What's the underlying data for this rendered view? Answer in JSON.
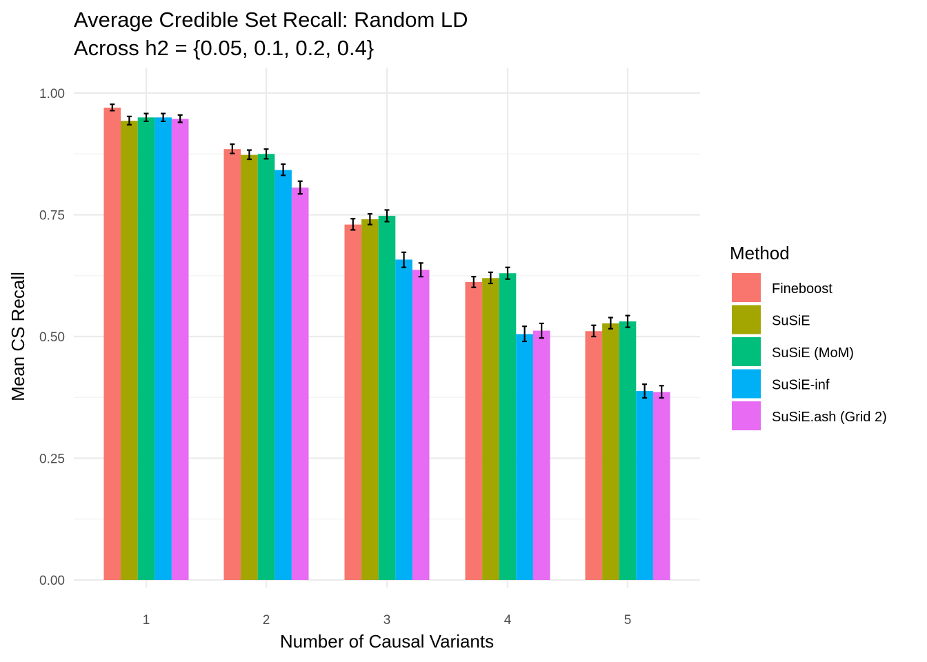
{
  "chart_data": {
    "type": "bar",
    "title": "Average Credible Set Recall: Random LD",
    "subtitle": "Across h2 = {0.05, 0.1, 0.2, 0.4}",
    "xlabel": "Number of Causal Variants",
    "ylabel": "Mean CS Recall",
    "categories": [
      "1",
      "2",
      "3",
      "4",
      "5"
    ],
    "ylim": [
      0,
      1.0
    ],
    "yticks": [
      0.0,
      0.25,
      0.5,
      0.75,
      1.0
    ],
    "ytick_labels": [
      "0.00",
      "0.25",
      "0.50",
      "0.75",
      "1.00"
    ],
    "grid": true,
    "legend": {
      "title": "Method",
      "position": "right"
    },
    "series": [
      {
        "name": "Fineboost",
        "color": "#F8766D",
        "values": [
          0.97,
          0.885,
          0.73,
          0.612,
          0.511
        ],
        "err_low": [
          0.964,
          0.876,
          0.719,
          0.601,
          0.5
        ],
        "err_high": [
          0.977,
          0.895,
          0.742,
          0.623,
          0.523
        ]
      },
      {
        "name": "SuSiE",
        "color": "#A3A500",
        "values": [
          0.943,
          0.873,
          0.741,
          0.62,
          0.527
        ],
        "err_low": [
          0.935,
          0.864,
          0.73,
          0.609,
          0.516
        ],
        "err_high": [
          0.952,
          0.883,
          0.752,
          0.632,
          0.539
        ]
      },
      {
        "name": "SuSiE (MoM)",
        "color": "#00BF7D",
        "values": [
          0.95,
          0.875,
          0.748,
          0.63,
          0.531
        ],
        "err_low": [
          0.942,
          0.865,
          0.736,
          0.618,
          0.519
        ],
        "err_high": [
          0.958,
          0.885,
          0.76,
          0.642,
          0.543
        ]
      },
      {
        "name": "SuSiE-inf",
        "color": "#00B0F6",
        "values": [
          0.95,
          0.842,
          0.658,
          0.505,
          0.388
        ],
        "err_low": [
          0.942,
          0.831,
          0.642,
          0.49,
          0.374
        ],
        "err_high": [
          0.958,
          0.854,
          0.673,
          0.521,
          0.402
        ]
      },
      {
        "name": "SuSiE.ash (Grid 2)",
        "color": "#E76BF3",
        "values": [
          0.947,
          0.806,
          0.637,
          0.512,
          0.386
        ],
        "err_low": [
          0.94,
          0.793,
          0.623,
          0.497,
          0.374
        ],
        "err_high": [
          0.955,
          0.819,
          0.651,
          0.527,
          0.399
        ]
      }
    ]
  }
}
